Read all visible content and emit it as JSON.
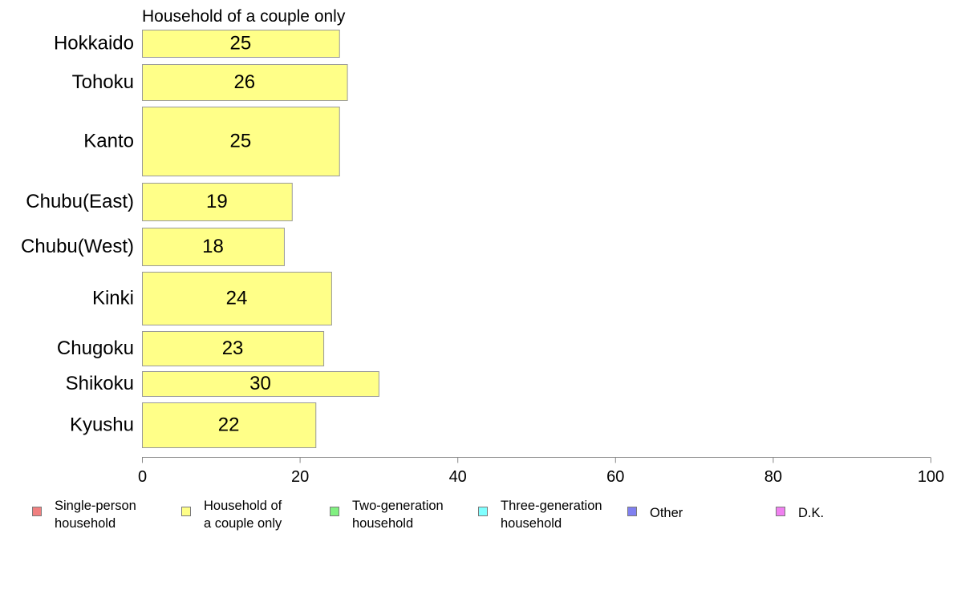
{
  "chart_data": {
    "type": "bar",
    "orientation": "horizontal",
    "title": "Household of a couple only",
    "categories": [
      "Hokkaido",
      "Tohoku",
      "Kanto",
      "Chubu(East)",
      "Chubu(West)",
      "Kinki",
      "Chugoku",
      "Shikoku",
      "Kyushu"
    ],
    "values": [
      25,
      26,
      25,
      19,
      18,
      24,
      23,
      30,
      22
    ],
    "data_labels": [
      "25",
      "26",
      "25",
      "19",
      "18",
      "24",
      "23",
      "30",
      "22"
    ],
    "xlim": [
      0,
      100
    ],
    "x_ticks": [
      "0",
      "20",
      "40",
      "60",
      "80",
      "100"
    ],
    "grid": false,
    "bar_color": "#ffff88",
    "bar_edge_color": "#999999",
    "legend": {
      "placement": "bottom",
      "items": [
        {
          "label": "Single-person\nhousehold",
          "color": "#f08080"
        },
        {
          "label": "Household of\na couple only",
          "color": "#ffff88"
        },
        {
          "label": "Two-generation\nhousehold",
          "color": "#80f080"
        },
        {
          "label": "Three-generation\nhousehold",
          "color": "#80ffff"
        },
        {
          "label": "Other",
          "color": "#8080f0"
        },
        {
          "label": "D.K.",
          "color": "#f080f0"
        }
      ]
    }
  }
}
